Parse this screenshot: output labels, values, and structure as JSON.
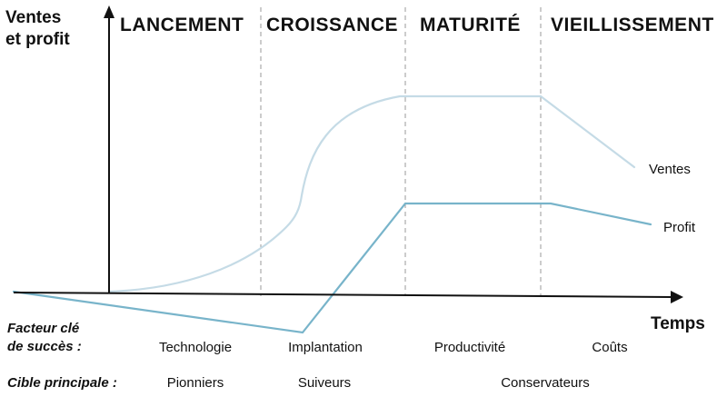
{
  "axis": {
    "ylabel_line1": "Ventes",
    "ylabel_line2": "et profit",
    "xlabel": "Temps"
  },
  "phases": [
    "LANCEMENT",
    "CROISSANCE",
    "MATURITÉ",
    "VIEILLISSEMENT"
  ],
  "curves": {
    "sales_label": "Ventes",
    "profit_label": "Profit",
    "sales_color": "#c5dbe6",
    "profit_color": "#78b4ca"
  },
  "rows": {
    "factor_label_line1": "Facteur clé",
    "factor_label_line2": "de succès :",
    "factors": [
      "Technologie",
      "Implantation",
      "Productivité",
      "Coûts"
    ],
    "target_label": "Cible principale :",
    "targets": [
      "Pionniers",
      "Suiveurs",
      "Conservateurs"
    ]
  }
}
